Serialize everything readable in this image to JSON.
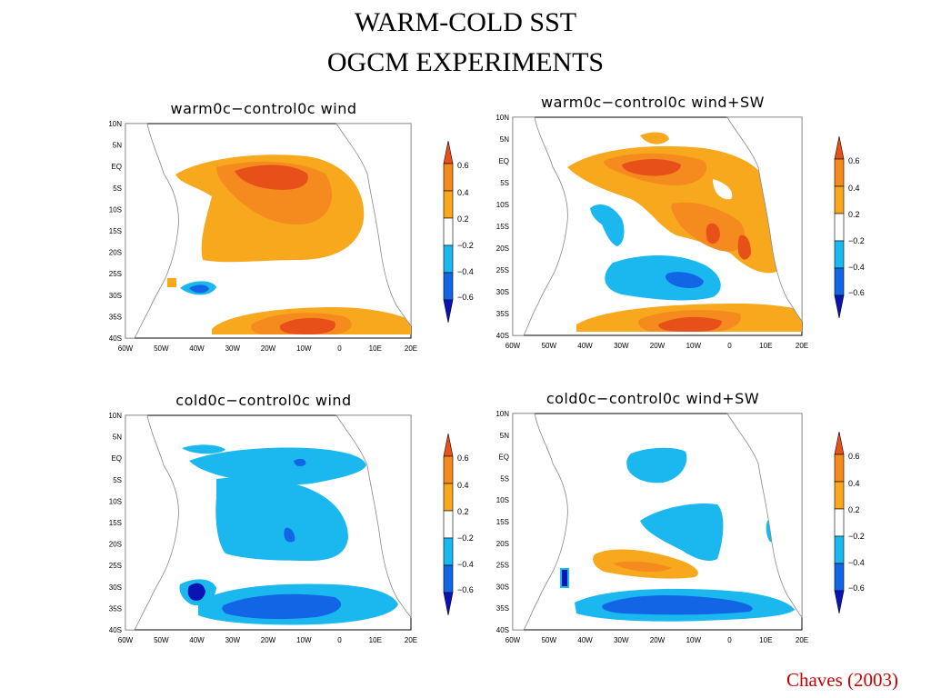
{
  "title": {
    "line1": "WARM-COLD SST",
    "line2": "OGCM EXPERIMENTS"
  },
  "credit": "Chaves (2003)",
  "axis": {
    "lat_labels": [
      "10N",
      "5N",
      "EQ",
      "5S",
      "10S",
      "15S",
      "20S",
      "25S",
      "30S",
      "35S",
      "40S"
    ],
    "lon_labels": [
      "60W",
      "50W",
      "40W",
      "30W",
      "20W",
      "10W",
      "0",
      "10E",
      "20E"
    ]
  },
  "colorbar": {
    "labels": [
      "0.6",
      "0.4",
      "0.2",
      "−0.2",
      "−0.4",
      "−0.6"
    ],
    "colors": {
      "pos3": "#e8501a",
      "pos2": "#f58a1f",
      "pos1": "#f7a81c",
      "neutral": "#ffffff",
      "neg1": "#1ab8ef",
      "neg2": "#1266e6",
      "neg3": "#0a14b4"
    }
  },
  "panels": [
    {
      "title": "warm0c−control0c wind"
    },
    {
      "title": "warm0c−control0c wind+SW"
    },
    {
      "title": "cold0c−control0c wind"
    },
    {
      "title": "cold0c−control0c wind+SW"
    }
  ]
}
